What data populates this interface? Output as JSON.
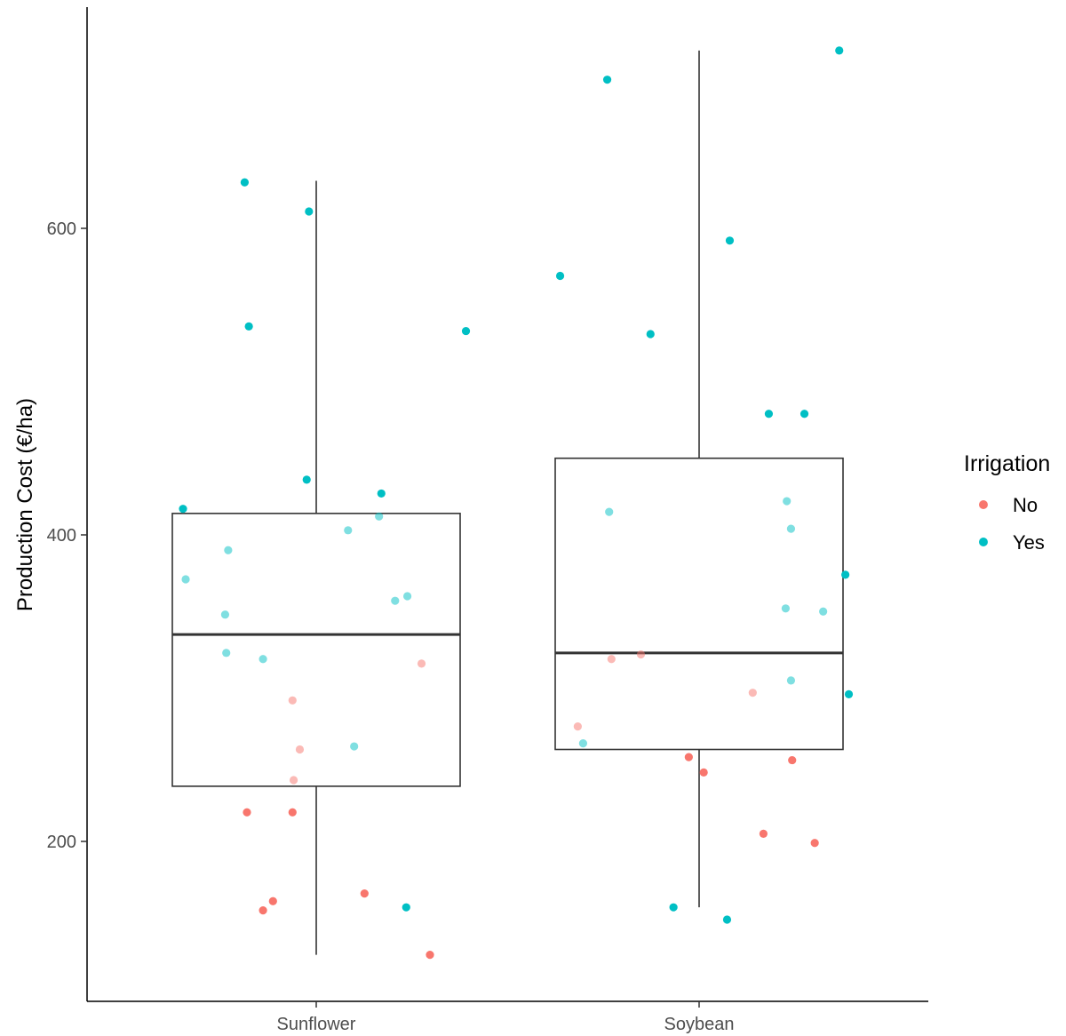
{
  "chart_data": {
    "type": "box",
    "title": "",
    "xlabel": "",
    "ylabel": "Production Cost (€/ha)",
    "ylim": [
      100,
      750
    ],
    "yticks": [
      200,
      400,
      600
    ],
    "categories": [
      "Sunflower",
      "Soybean"
    ],
    "boxes": [
      {
        "category": "Sunflower",
        "whisker_low": 126,
        "q1": 236,
        "median": 335,
        "q3": 414,
        "whisker_high": 631
      },
      {
        "category": "Soybean",
        "whisker_low": 157,
        "q1": 260,
        "median": 323,
        "q3": 450,
        "whisker_high": 716
      }
    ],
    "grid": false,
    "legend": {
      "title": "Irrigation",
      "position": "right",
      "entries": [
        {
          "label": "No",
          "color": "#F8766D"
        },
        {
          "label": "Yes",
          "color": "#00BFC4"
        }
      ]
    },
    "points": [
      {
        "category": "Sunflower",
        "x_offset": -0.348,
        "y": 417,
        "group": "Yes",
        "faded": false
      },
      {
        "category": "Sunflower",
        "x_offset": -0.187,
        "y": 630,
        "group": "Yes",
        "faded": false
      },
      {
        "category": "Sunflower",
        "x_offset": -0.176,
        "y": 536,
        "group": "Yes",
        "faded": false
      },
      {
        "category": "Sunflower",
        "x_offset": -0.019,
        "y": 611,
        "group": "Yes",
        "faded": false
      },
      {
        "category": "Sunflower",
        "x_offset": -0.025,
        "y": 436,
        "group": "Yes",
        "faded": false
      },
      {
        "category": "Sunflower",
        "x_offset": 0.17,
        "y": 427,
        "group": "Yes",
        "faded": false
      },
      {
        "category": "Sunflower",
        "x_offset": 0.391,
        "y": 533,
        "group": "Yes",
        "faded": false
      },
      {
        "category": "Sunflower",
        "x_offset": 0.235,
        "y": 157,
        "group": "Yes",
        "faded": false
      },
      {
        "category": "Sunflower",
        "x_offset": -0.341,
        "y": 371,
        "group": "Yes",
        "faded": true
      },
      {
        "category": "Sunflower",
        "x_offset": -0.23,
        "y": 390,
        "group": "Yes",
        "faded": true
      },
      {
        "category": "Sunflower",
        "x_offset": -0.238,
        "y": 348,
        "group": "Yes",
        "faded": true
      },
      {
        "category": "Sunflower",
        "x_offset": -0.235,
        "y": 323,
        "group": "Yes",
        "faded": true
      },
      {
        "category": "Sunflower",
        "x_offset": -0.139,
        "y": 319,
        "group": "Yes",
        "faded": true
      },
      {
        "category": "Sunflower",
        "x_offset": 0.083,
        "y": 403,
        "group": "Yes",
        "faded": true
      },
      {
        "category": "Sunflower",
        "x_offset": 0.164,
        "y": 412,
        "group": "Yes",
        "faded": true
      },
      {
        "category": "Sunflower",
        "x_offset": 0.206,
        "y": 357,
        "group": "Yes",
        "faded": true
      },
      {
        "category": "Sunflower",
        "x_offset": 0.238,
        "y": 360,
        "group": "Yes",
        "faded": true
      },
      {
        "category": "Sunflower",
        "x_offset": 0.099,
        "y": 262,
        "group": "Yes",
        "faded": true
      },
      {
        "category": "Sunflower",
        "x_offset": -0.181,
        "y": 219,
        "group": "No",
        "faded": false
      },
      {
        "category": "Sunflower",
        "x_offset": -0.062,
        "y": 219,
        "group": "No",
        "faded": false
      },
      {
        "category": "Sunflower",
        "x_offset": -0.139,
        "y": 155,
        "group": "No",
        "faded": false
      },
      {
        "category": "Sunflower",
        "x_offset": -0.113,
        "y": 161,
        "group": "No",
        "faded": false
      },
      {
        "category": "Sunflower",
        "x_offset": 0.126,
        "y": 166,
        "group": "No",
        "faded": false
      },
      {
        "category": "Sunflower",
        "x_offset": 0.297,
        "y": 126,
        "group": "No",
        "faded": false
      },
      {
        "category": "Sunflower",
        "x_offset": -0.062,
        "y": 292,
        "group": "No",
        "faded": true
      },
      {
        "category": "Sunflower",
        "x_offset": -0.043,
        "y": 260,
        "group": "No",
        "faded": true
      },
      {
        "category": "Sunflower",
        "x_offset": -0.059,
        "y": 240,
        "group": "No",
        "faded": true
      },
      {
        "category": "Sunflower",
        "x_offset": 0.275,
        "y": 316,
        "group": "No",
        "faded": true
      },
      {
        "category": "Soybean",
        "x_offset": -0.24,
        "y": 697,
        "group": "Yes",
        "faded": false
      },
      {
        "category": "Soybean",
        "x_offset": 0.366,
        "y": 716,
        "group": "Yes",
        "faded": false
      },
      {
        "category": "Soybean",
        "x_offset": -0.363,
        "y": 569,
        "group": "Yes",
        "faded": false
      },
      {
        "category": "Soybean",
        "x_offset": 0.08,
        "y": 592,
        "group": "Yes",
        "faded": false
      },
      {
        "category": "Soybean",
        "x_offset": -0.127,
        "y": 531,
        "group": "Yes",
        "faded": false
      },
      {
        "category": "Soybean",
        "x_offset": 0.182,
        "y": 479,
        "group": "Yes",
        "faded": false
      },
      {
        "category": "Soybean",
        "x_offset": 0.275,
        "y": 479,
        "group": "Yes",
        "faded": false
      },
      {
        "category": "Soybean",
        "x_offset": 0.382,
        "y": 374,
        "group": "Yes",
        "faded": false
      },
      {
        "category": "Soybean",
        "x_offset": 0.391,
        "y": 296,
        "group": "Yes",
        "faded": false
      },
      {
        "category": "Soybean",
        "x_offset": -0.067,
        "y": 157,
        "group": "Yes",
        "faded": false
      },
      {
        "category": "Soybean",
        "x_offset": 0.073,
        "y": 149,
        "group": "Yes",
        "faded": false
      },
      {
        "category": "Soybean",
        "x_offset": -0.235,
        "y": 415,
        "group": "Yes",
        "faded": true
      },
      {
        "category": "Soybean",
        "x_offset": 0.229,
        "y": 422,
        "group": "Yes",
        "faded": true
      },
      {
        "category": "Soybean",
        "x_offset": 0.24,
        "y": 404,
        "group": "Yes",
        "faded": true
      },
      {
        "category": "Soybean",
        "x_offset": 0.226,
        "y": 352,
        "group": "Yes",
        "faded": true
      },
      {
        "category": "Soybean",
        "x_offset": 0.324,
        "y": 350,
        "group": "Yes",
        "faded": true
      },
      {
        "category": "Soybean",
        "x_offset": 0.24,
        "y": 305,
        "group": "Yes",
        "faded": true
      },
      {
        "category": "Soybean",
        "x_offset": -0.303,
        "y": 264,
        "group": "Yes",
        "faded": true
      },
      {
        "category": "Soybean",
        "x_offset": -0.027,
        "y": 255,
        "group": "No",
        "faded": false
      },
      {
        "category": "Soybean",
        "x_offset": 0.012,
        "y": 245,
        "group": "No",
        "faded": false
      },
      {
        "category": "Soybean",
        "x_offset": 0.243,
        "y": 253,
        "group": "No",
        "faded": false
      },
      {
        "category": "Soybean",
        "x_offset": 0.168,
        "y": 205,
        "group": "No",
        "faded": false
      },
      {
        "category": "Soybean",
        "x_offset": 0.302,
        "y": 199,
        "group": "No",
        "faded": false
      },
      {
        "category": "Soybean",
        "x_offset": -0.229,
        "y": 319,
        "group": "No",
        "faded": true
      },
      {
        "category": "Soybean",
        "x_offset": -0.152,
        "y": 322,
        "group": "No",
        "faded": true
      },
      {
        "category": "Soybean",
        "x_offset": -0.317,
        "y": 275,
        "group": "No",
        "faded": true
      },
      {
        "category": "Soybean",
        "x_offset": 0.14,
        "y": 297,
        "group": "No",
        "faded": true
      }
    ]
  }
}
